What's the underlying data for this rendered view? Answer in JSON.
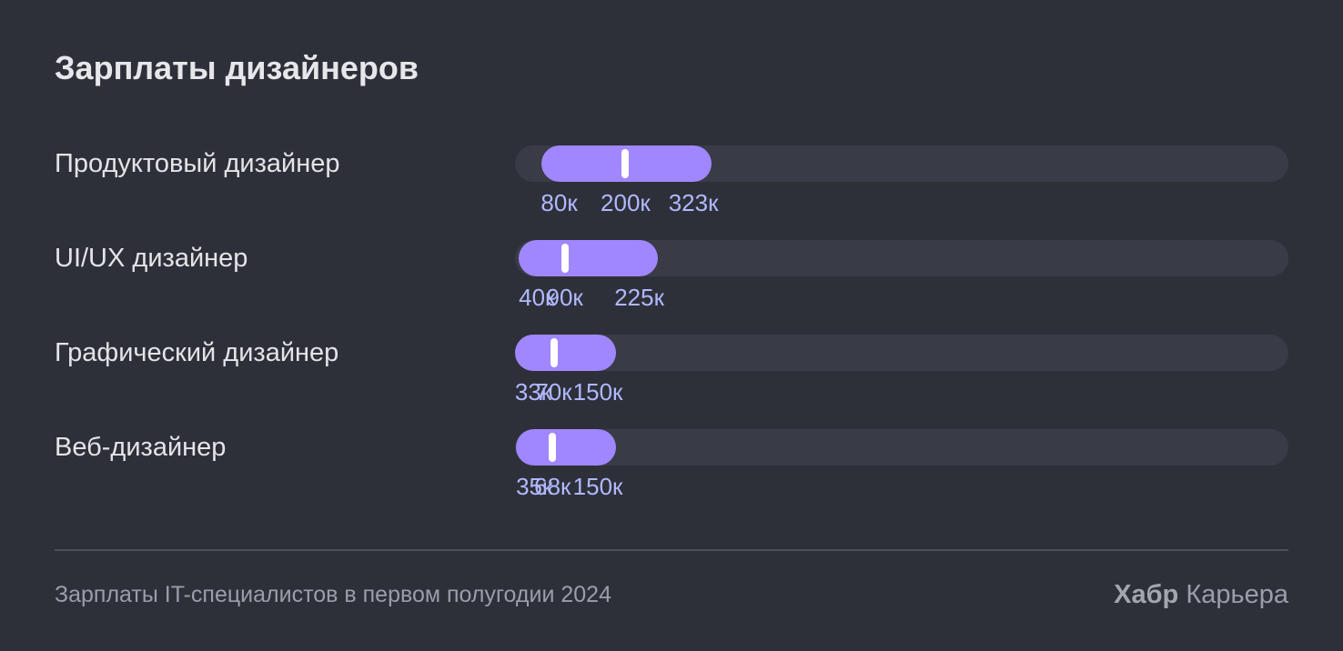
{
  "colors": {
    "background": "#2e3039",
    "track": "#393b46",
    "bar": "#a087ff",
    "median": "#ffffff",
    "tick_text": "#b1b8ff"
  },
  "chart_data": {
    "type": "bar",
    "title": "Зарплаты дизайнеров",
    "subtype": "range",
    "xlim": [
      0,
      1400
    ],
    "categories": [
      "Продуктовый дизайнер",
      "UI/UX дизайнер",
      "Графический дизайнер",
      "Веб-дизайнер"
    ],
    "series": [
      {
        "name": "",
        "min": [
          80,
          40,
          33,
          35
        ],
        "median": [
          200,
          90,
          70,
          68
        ],
        "max": [
          323,
          225,
          150,
          150
        ]
      }
    ],
    "value_labels": [
      [
        "80к",
        "200к",
        "323к"
      ],
      [
        "40к",
        "90к",
        "225к"
      ],
      [
        "33к",
        "70к",
        "150к"
      ],
      [
        "35к",
        "68к",
        "150к"
      ]
    ]
  },
  "footer": {
    "note": "Зарплаты IT-специалистов в первом полугодии 2024",
    "brand_bold": "Хабр",
    "brand_rest": "Карьера"
  }
}
